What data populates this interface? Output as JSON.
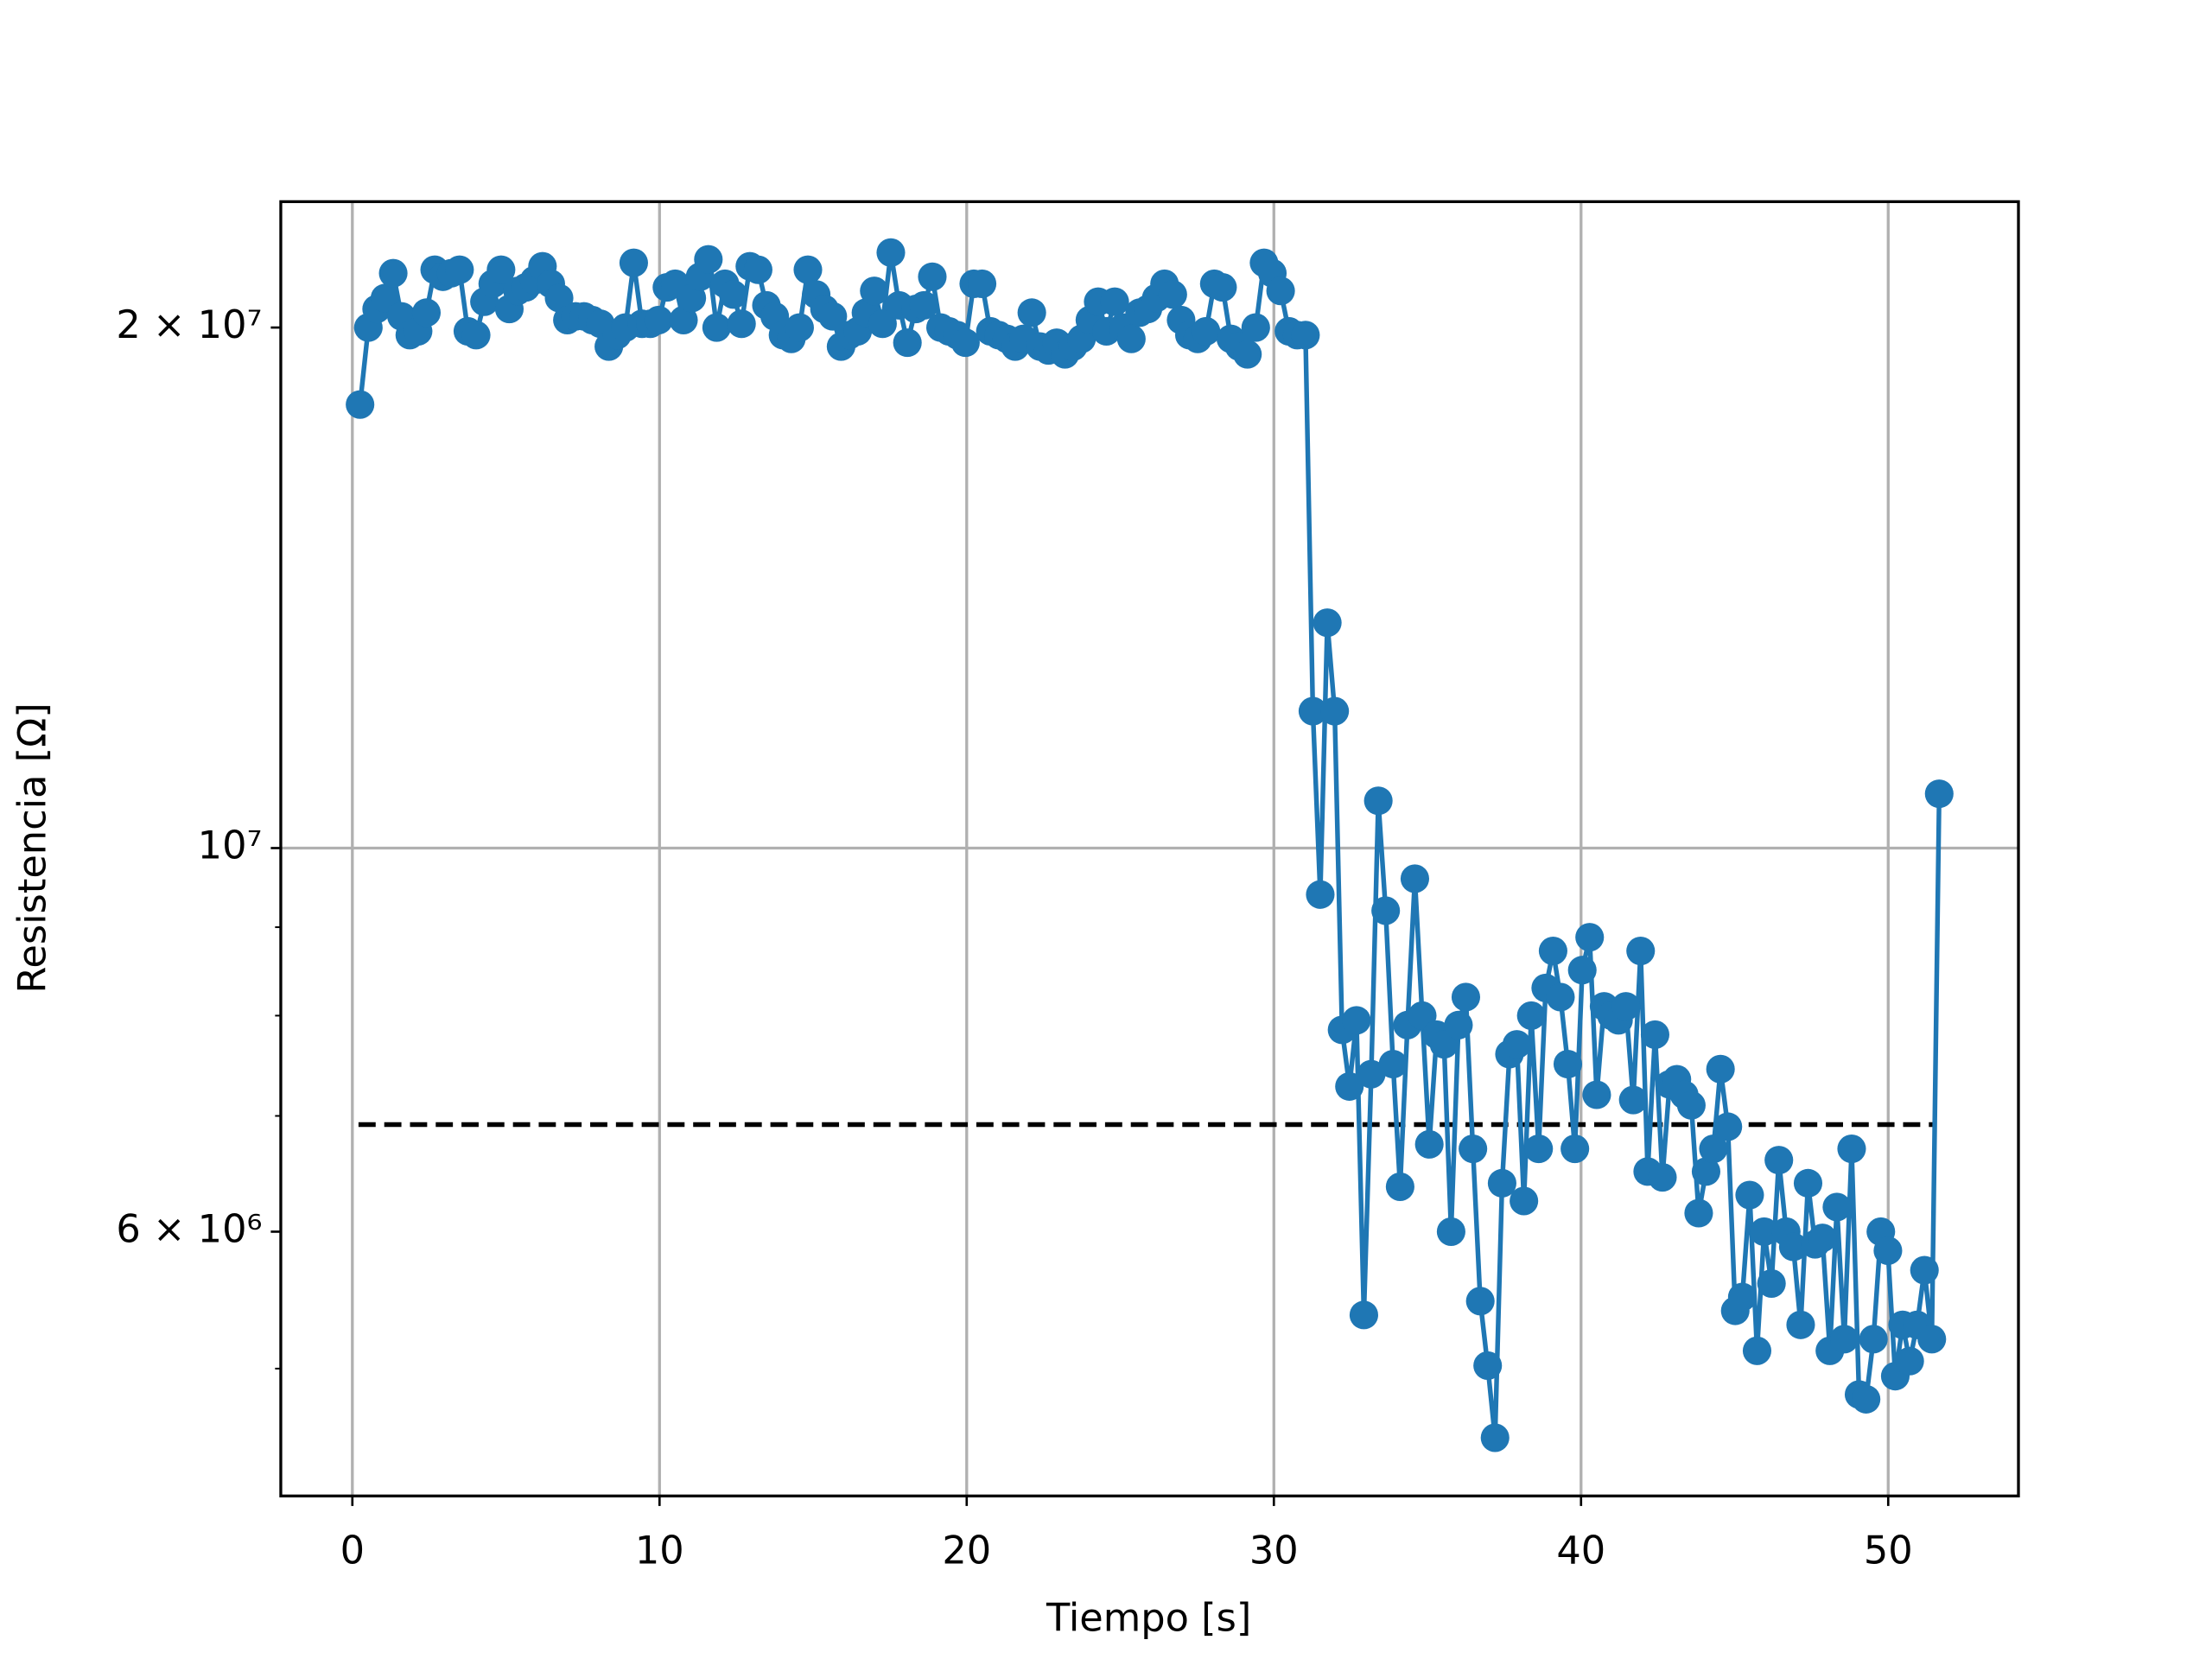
{
  "chart_data": {
    "type": "line",
    "x_label": "Tiempo [s]",
    "y_label": "Resistencia [Ω]",
    "log_y": true,
    "grid": true,
    "xlim": [
      -2.33,
      54.24
    ],
    "ylim": [
      4220000,
      23650000
    ],
    "xticks": [
      0,
      10,
      20,
      30,
      40,
      50
    ],
    "yticks": [
      {
        "value": 20000000,
        "label": "2 × 10⁷"
      },
      {
        "value": 10000000,
        "label": "10⁷"
      },
      {
        "value": 6000000,
        "label": "6 × 10⁶"
      }
    ],
    "y_minor_ticks": [
      5000000,
      7000000,
      8000000,
      9000000
    ],
    "y_grid_at": [
      10000000
    ],
    "hline": {
      "y": 6920000,
      "x": [
        0.2,
        51.5
      ],
      "color": "#000000",
      "dashed": true
    },
    "x": [
      0.25,
      0.52,
      0.79,
      1.06,
      1.33,
      1.6,
      1.87,
      2.14,
      2.41,
      2.68,
      2.95,
      3.22,
      3.49,
      3.76,
      4.03,
      4.3,
      4.57,
      4.84,
      5.11,
      5.38,
      5.65,
      5.92,
      6.19,
      6.46,
      6.73,
      7.0,
      7.27,
      7.54,
      7.81,
      8.08,
      8.35,
      8.62,
      8.89,
      9.16,
      9.43,
      9.7,
      9.97,
      10.24,
      10.51,
      10.78,
      11.05,
      11.32,
      11.59,
      11.86,
      12.13,
      12.4,
      12.67,
      12.94,
      13.21,
      13.48,
      13.75,
      14.02,
      14.29,
      14.56,
      14.83,
      15.1,
      15.37,
      15.64,
      15.91,
      16.18,
      16.45,
      16.72,
      16.99,
      17.26,
      17.53,
      17.8,
      18.07,
      18.34,
      18.61,
      18.88,
      19.15,
      19.42,
      19.69,
      19.96,
      20.23,
      20.5,
      20.77,
      21.04,
      21.31,
      21.58,
      21.85,
      22.12,
      22.39,
      22.66,
      22.93,
      23.2,
      23.47,
      23.74,
      24.01,
      24.28,
      24.55,
      24.82,
      25.09,
      25.36,
      25.63,
      25.9,
      26.17,
      26.44,
      26.71,
      26.98,
      27.25,
      27.52,
      27.79,
      28.06,
      28.33,
      28.6,
      28.87,
      29.14,
      29.41,
      29.68,
      29.95,
      30.22,
      30.49,
      30.76,
      31.03,
      31.27,
      31.51,
      31.74,
      31.98,
      32.22,
      32.46,
      32.69,
      32.93,
      33.17,
      33.4,
      33.64,
      33.88,
      34.11,
      34.35,
      34.59,
      34.83,
      35.06,
      35.3,
      35.54,
      35.77,
      36.01,
      36.25,
      36.48,
      36.72,
      36.96,
      37.2,
      37.43,
      37.67,
      37.91,
      38.14,
      38.38,
      38.62,
      38.85,
      39.09,
      39.33,
      39.57,
      39.8,
      40.04,
      40.28,
      40.51,
      40.75,
      40.99,
      41.22,
      41.46,
      41.7,
      41.94,
      42.17,
      42.41,
      42.65,
      42.88,
      43.12,
      43.36,
      43.59,
      43.83,
      44.07,
      44.31,
      44.54,
      44.78,
      45.02,
      45.25,
      45.49,
      45.73,
      45.96,
      46.2,
      46.44,
      46.68,
      46.91,
      47.15,
      47.39,
      47.62,
      47.86,
      48.1,
      48.33,
      48.57,
      48.81,
      49.05,
      49.28,
      49.52,
      49.76,
      49.99,
      50.23,
      50.47,
      50.7,
      50.94,
      51.18,
      51.42,
      51.66
    ],
    "series": [
      {
        "color": "#1f77b4",
        "values": [
          18050000.0,
          20000000.0,
          20500000.0,
          20800000.0,
          21500000.0,
          20300000.0,
          19800000.0,
          19900000.0,
          20400000.0,
          21600000.0,
          21400000.0,
          21500000.0,
          21600000.0,
          19900000.0,
          19800000.0,
          20700000.0,
          21200000.0,
          21600000.0,
          20500000.0,
          21000000.0,
          21100000.0,
          21300000.0,
          21700000.0,
          21200000.0,
          20800000.0,
          20200000.0,
          20300000.0,
          20300000.0,
          20200000.0,
          20100000.0,
          19500000.0,
          19800000.0,
          20000000.0,
          21800000.0,
          20100000.0,
          20100000.0,
          20200000.0,
          21100000.0,
          21200000.0,
          20200000.0,
          20800000.0,
          21400000.0,
          21900000.0,
          20000000.0,
          21200000.0,
          20900000.0,
          20100000.0,
          21700000.0,
          21600000.0,
          20600000.0,
          20300000.0,
          19800000.0,
          19700000.0,
          20000000.0,
          21600000.0,
          20900000.0,
          20500000.0,
          20300000.0,
          19500000.0,
          19800000.0,
          19900000.0,
          20400000.0,
          21000000.0,
          20100000.0,
          22100000.0,
          20600000.0,
          19600000.0,
          20500000.0,
          20600000.0,
          21400000.0,
          20000000.0,
          19900000.0,
          19800000.0,
          19600000.0,
          21200000.0,
          21200000.0,
          19900000.0,
          19800000.0,
          19700000.0,
          19500000.0,
          19700000.0,
          20400000.0,
          19500000.0,
          19400000.0,
          19600000.0,
          19300000.0,
          19500000.0,
          19700000.0,
          20200000.0,
          20700000.0,
          19900000.0,
          20700000.0,
          20000000.0,
          19700000.0,
          20400000.0,
          20500000.0,
          20800000.0,
          21200000.0,
          20900000.0,
          20200000.0,
          19800000.0,
          19700000.0,
          19900000.0,
          21200000.0,
          21100000.0,
          19700000.0,
          19500000.0,
          19300000.0,
          20000000.0,
          21800000.0,
          21500000.0,
          21000000.0,
          19900000.0,
          19800000.0,
          19800000.0,
          12000000.0,
          9400000.0,
          13500000.0,
          12000000.0,
          7850000.0,
          7280000.0,
          7950000.0,
          5370000.0,
          7400000.0,
          10650000.0,
          9200000.0,
          7500000.0,
          6370000.0,
          7900000.0,
          9600000.0,
          8000000.0,
          6740000.0,
          7800000.0,
          7700000.0,
          6000000.0,
          7900000.0,
          8200000.0,
          6700000.0,
          5470000.0,
          5020000.0,
          4560000.0,
          6400000.0,
          7600000.0,
          7700000.0,
          6250000.0,
          8000000.0,
          6700000.0,
          8300000.0,
          8720000.0,
          8200000.0,
          7500000.0,
          6700000.0,
          8500000.0,
          8880000.0,
          7200000.0,
          8100000.0,
          8000000.0,
          7950000.0,
          8100000.0,
          7150000.0,
          8720000.0,
          6500000.0,
          7800000.0,
          6450000.0,
          7300000.0,
          7350000.0,
          7200000.0,
          7100000.0,
          6150000.0,
          6500000.0,
          6700000.0,
          7450000.0,
          6900000.0,
          5400000.0,
          5500000.0,
          6300000.0,
          5120000.0,
          6000000.0,
          5600000.0,
          6600000.0,
          6000000.0,
          5880000.0,
          5300000.0,
          6400000.0,
          5900000.0,
          5950000.0,
          5120000.0,
          6200000.0,
          5200000.0,
          6700000.0,
          4830000.0,
          4800000.0,
          5200000.0,
          6000000.0,
          5850000.0,
          4950000.0,
          5300000.0,
          5050000.0,
          5300000.0,
          5700000.0,
          5200000.0,
          10750000.0
        ]
      }
    ]
  }
}
